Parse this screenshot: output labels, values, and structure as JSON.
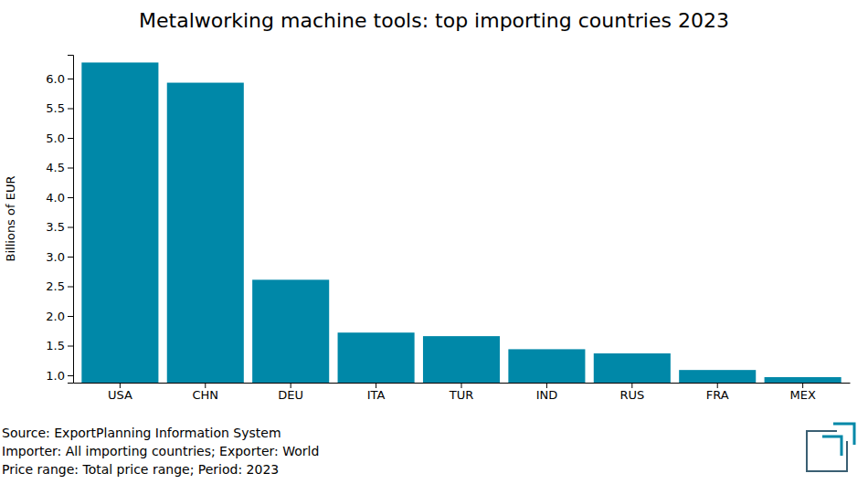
{
  "chart_data": {
    "type": "bar",
    "title": "Metalworking machine tools: top importing countries 2023",
    "y_label": "Billions of EUR",
    "categories": [
      "USA",
      "CHN",
      "DEU",
      "ITA",
      "TUR",
      "IND",
      "RUS",
      "FRA",
      "MEX"
    ],
    "values": [
      6.27,
      5.93,
      2.61,
      1.72,
      1.66,
      1.44,
      1.37,
      1.09,
      0.97
    ],
    "color": "#0088a8",
    "ylim": [
      0.877,
      6.4
    ],
    "yticks": [
      {
        "value": 1,
        "label": "1.0"
      },
      1.5,
      {
        "value": 2,
        "label": "2.0"
      },
      2.5,
      {
        "value": 3,
        "label": "3.0"
      },
      3.5,
      {
        "value": 4,
        "label": "4.0"
      },
      4.5,
      {
        "value": 5,
        "label": "5.0"
      },
      5.5,
      {
        "value": 6,
        "label": "6.0"
      }
    ],
    "grid": false,
    "annotations": [
      "Source: ExportPlanning Information System",
      "Importer: All importing countries; Exporter: World",
      "Price range: Total price range; Period: 2023"
    ]
  }
}
